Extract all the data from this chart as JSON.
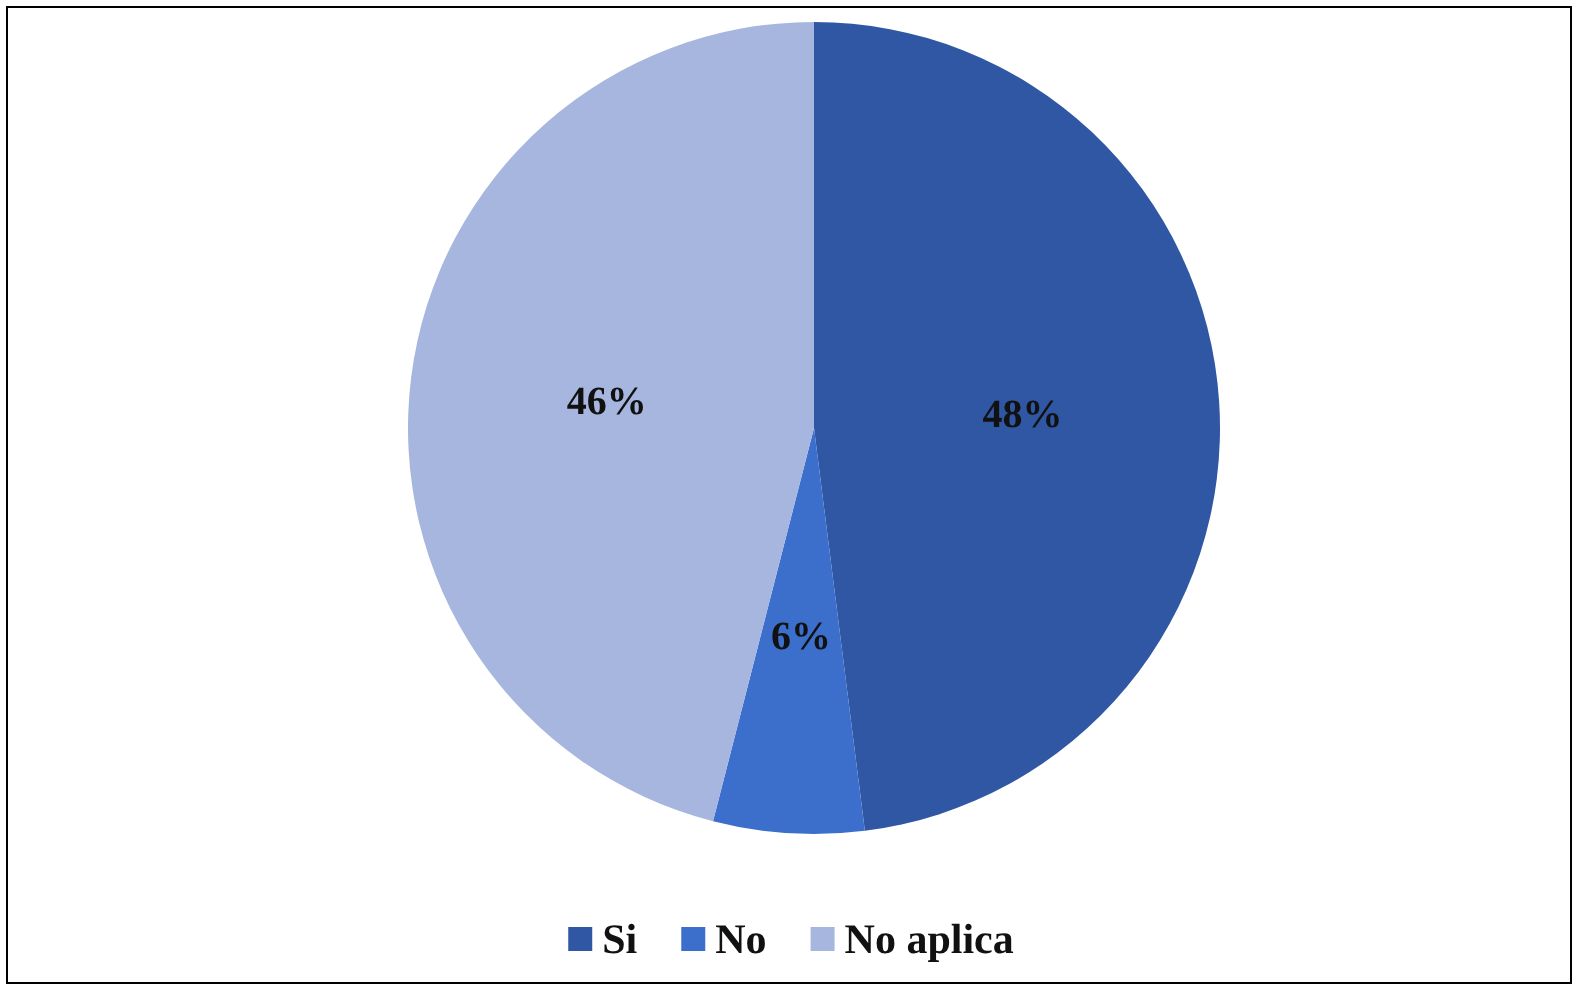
{
  "chart_data": {
    "type": "pie",
    "categories": [
      "Si",
      "No",
      "No aplica"
    ],
    "values": [
      48,
      6,
      46
    ],
    "colors": [
      "#2f57a4",
      "#3c6fcc",
      "#a6b6df"
    ],
    "value_labels": [
      "48%",
      "6%",
      "46%"
    ],
    "legend": "bottom"
  }
}
